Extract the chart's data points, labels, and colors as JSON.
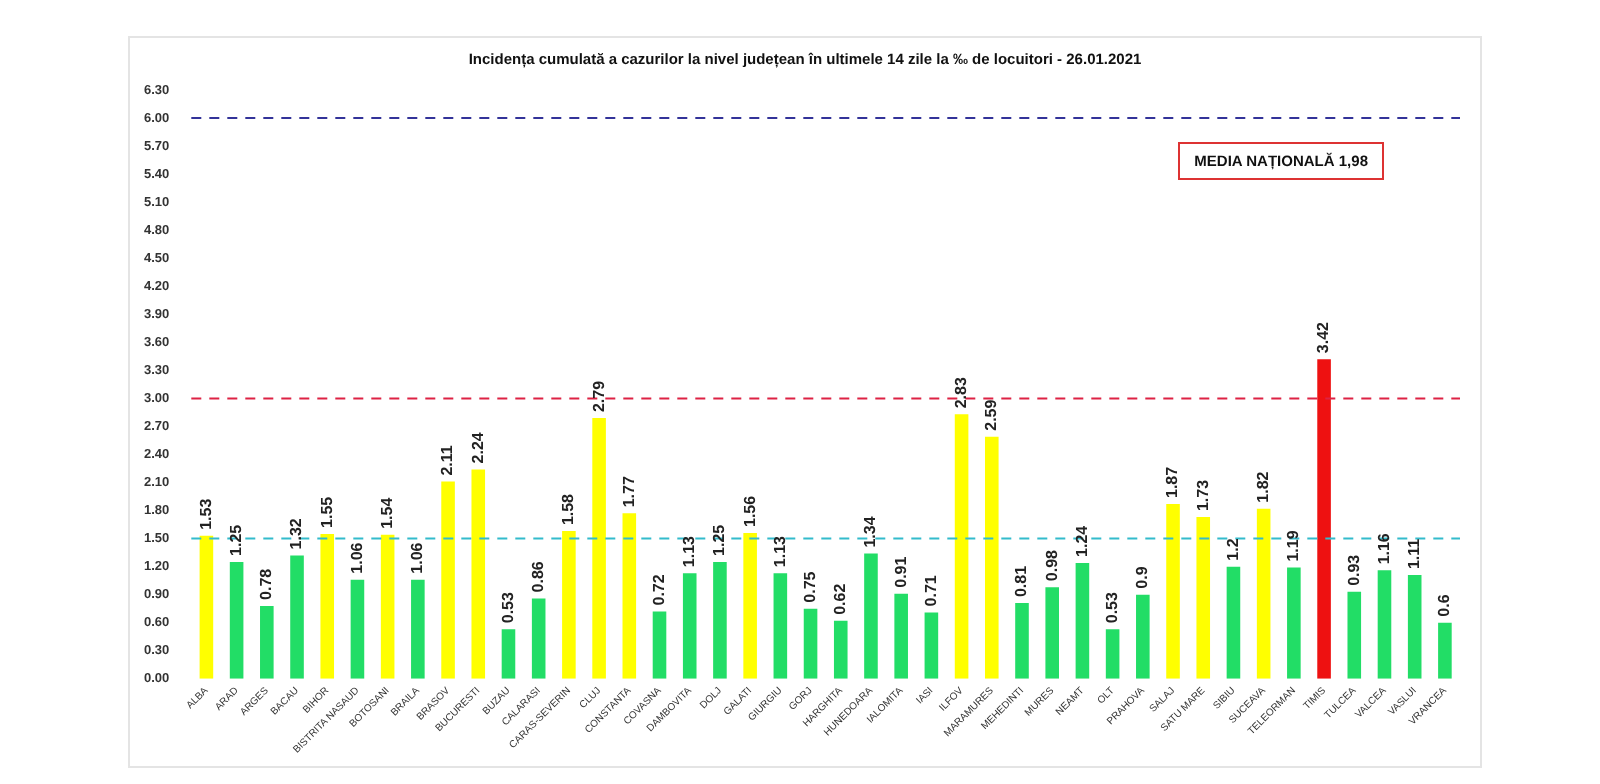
{
  "chart_data": {
    "type": "bar",
    "title": "Incidența cumulată a cazurilor la nivel județean în ultimele 14 zile la ‰ de locuitori - 26.01.2021",
    "categories": [
      "ALBA",
      "ARAD",
      "ARGES",
      "BACAU",
      "BIHOR",
      "BISTRITA NASAUD",
      "BOTOSANI",
      "BRAILA",
      "BRASOV",
      "BUCURESTI",
      "BUZAU",
      "CALARASI",
      "CARAS-SEVERIN",
      "CLUJ",
      "CONSTANTA",
      "COVASNA",
      "DAMBOVITA",
      "DOLJ",
      "GALATI",
      "GIURGIU",
      "GORJ",
      "HARGHITA",
      "HUNEDOARA",
      "IALOMITA",
      "IASI",
      "ILFOV",
      "MARAMURES",
      "MEHEDINTI",
      "MURES",
      "NEAMT",
      "OLT",
      "PRAHOVA",
      "SALAJ",
      "SATU MARE",
      "SIBIU",
      "SUCEAVA",
      "TELEORMAN",
      "TIMIS",
      "TULCEA",
      "VALCEA",
      "VASLUI",
      "VRANCEA"
    ],
    "values": [
      1.53,
      1.25,
      0.78,
      1.32,
      1.55,
      1.06,
      1.54,
      1.06,
      2.11,
      2.24,
      0.53,
      0.86,
      1.58,
      2.79,
      1.77,
      0.72,
      1.13,
      1.25,
      1.56,
      1.13,
      0.75,
      0.62,
      1.34,
      0.91,
      0.71,
      2.83,
      2.59,
      0.81,
      0.98,
      1.24,
      0.53,
      0.9,
      1.87,
      1.73,
      1.2,
      1.82,
      1.19,
      3.42,
      0.93,
      1.16,
      1.11,
      0.6
    ],
    "colors": [
      "#ffff00",
      "#22dd66",
      "#22dd66",
      "#22dd66",
      "#ffff00",
      "#22dd66",
      "#ffff00",
      "#22dd66",
      "#ffff00",
      "#ffff00",
      "#22dd66",
      "#22dd66",
      "#ffff00",
      "#ffff00",
      "#ffff00",
      "#22dd66",
      "#22dd66",
      "#22dd66",
      "#ffff00",
      "#22dd66",
      "#22dd66",
      "#22dd66",
      "#22dd66",
      "#22dd66",
      "#22dd66",
      "#ffff00",
      "#ffff00",
      "#22dd66",
      "#22dd66",
      "#22dd66",
      "#22dd66",
      "#22dd66",
      "#ffff00",
      "#ffff00",
      "#22dd66",
      "#ffff00",
      "#22dd66",
      "#ee1111",
      "#22dd66",
      "#22dd66",
      "#22dd66",
      "#22dd66"
    ],
    "ylim": [
      0,
      6.3
    ],
    "yticks": [
      {
        "value": 0,
        "label": "0.00"
      },
      {
        "value": 0.3,
        "label": "0.30"
      },
      {
        "value": 0.6,
        "label": "0.60"
      },
      {
        "value": 0.9,
        "label": "0.90"
      },
      {
        "value": 1.2,
        "label": "1.20"
      },
      {
        "value": 1.5,
        "label": "1.50"
      },
      {
        "value": 1.8,
        "label": "1.80"
      },
      {
        "value": 2.1,
        "label": "2.10"
      },
      {
        "value": 2.4,
        "label": "2.40"
      },
      {
        "value": 2.7,
        "label": "2.70"
      },
      {
        "value": 3,
        "label": "3.00"
      },
      {
        "value": 3.3,
        "label": "3.30"
      },
      {
        "value": 3.6,
        "label": "3.60"
      },
      {
        "value": 3.9,
        "label": "3.90"
      },
      {
        "value": 4.2,
        "label": "4.20"
      },
      {
        "value": 4.5,
        "label": "4.50"
      },
      {
        "value": 4.8,
        "label": "4.80"
      },
      {
        "value": 5.1,
        "label": "5.10"
      },
      {
        "value": 5.4,
        "label": "5.40"
      },
      {
        "value": 5.7,
        "label": "5.70"
      },
      {
        "value": 6,
        "label": "6.00"
      },
      {
        "value": 6.3,
        "label": "6.30"
      }
    ],
    "ref_lines": [
      {
        "axis": "y",
        "value": 6,
        "color": "#333399",
        "line_style": "dashed"
      },
      {
        "axis": "y",
        "value": 3,
        "color": "#dd2244",
        "line_style": "dashed"
      },
      {
        "axis": "y",
        "value": 1.5,
        "color": "#33bbcc",
        "line_style": "dashed"
      }
    ],
    "annotations": [
      "MEDIA NAȚIONALĂ 1,98"
    ],
    "data_labels": true,
    "grid": false,
    "legend": false
  }
}
